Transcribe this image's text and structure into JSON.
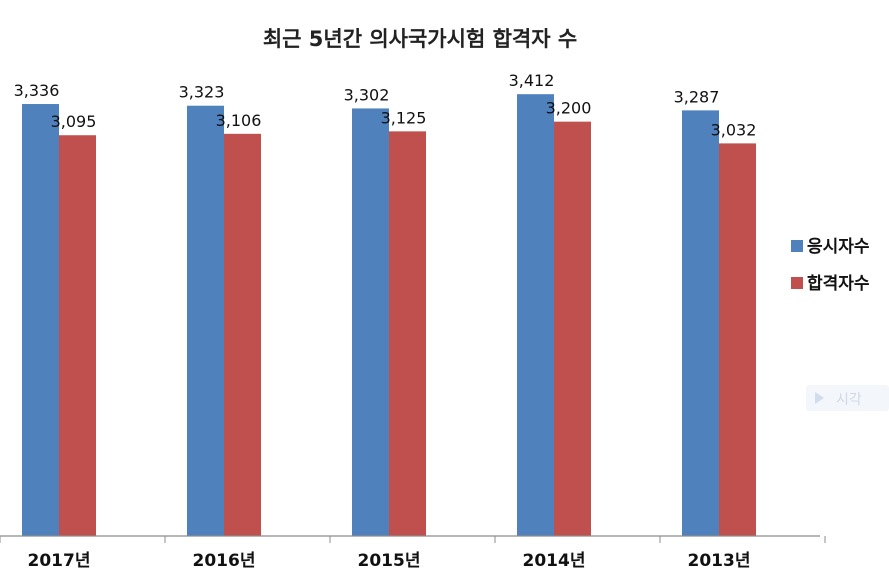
{
  "chart_data": {
    "type": "bar",
    "title": "최근 5년간 의사국가시험 합격자 수",
    "categories": [
      "2017년",
      "2016년",
      "2015년",
      "2014년",
      "2013년"
    ],
    "series": [
      {
        "name": "응시자수",
        "color": "#4F81BD",
        "values": [
          3336,
          3323,
          3302,
          3412,
          3287
        ],
        "labels": [
          "3,336",
          "3,323",
          "3,302",
          "3,412",
          "3,287"
        ]
      },
      {
        "name": "합격자수",
        "color": "#C0504D",
        "values": [
          3095,
          3106,
          3125,
          3200,
          3032
        ],
        "labels": [
          "3,095",
          "3,106",
          "3,125",
          "3,200",
          "3,032"
        ]
      }
    ],
    "ylim": [
      0,
      3900
    ],
    "legend_position": "right",
    "grid": false
  },
  "overlay": {
    "ghost_text": "시각"
  }
}
